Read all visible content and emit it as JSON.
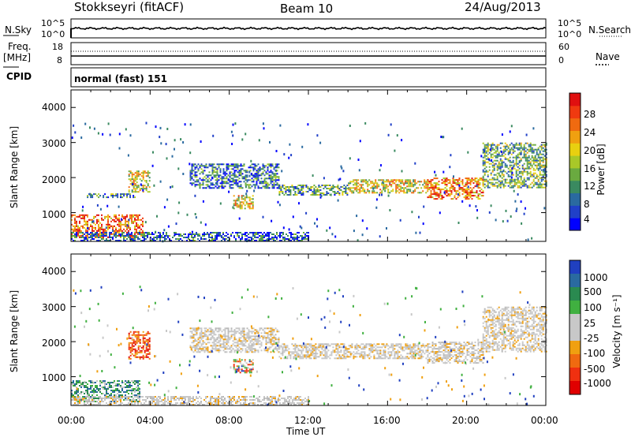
{
  "header": {
    "station": "Stokkseyri (fitACF)",
    "beam": "Beam 10",
    "date": "24/Aug/2013"
  },
  "top_panels": {
    "nsky_label": "N.Sky",
    "nsky_ticks": [
      "10^5",
      "10^0"
    ],
    "nsearch_label": "N.Search",
    "nsearch_ticks": [
      "10^5",
      "10^0"
    ],
    "freq_label": "Freq.",
    "freq_unit": "[MHz]",
    "freq_ticks": [
      "18",
      "8"
    ],
    "nave_label": "Nave",
    "nave_ticks": [
      "60",
      "0"
    ],
    "cpid_label": "CPID",
    "cpid_value": "normal (fast) 151"
  },
  "chart_data": [
    {
      "type": "heatmap",
      "name": "power",
      "ylabel": "Slant Range [km]",
      "y_ticks": [
        "4000",
        "3000",
        "2000",
        "1000"
      ],
      "y_tick_values": [
        4000,
        3000,
        2000,
        1000
      ],
      "ylim": [
        180,
        4500
      ],
      "xlim_hours": [
        0,
        24
      ],
      "colorbar_label": "Power [dB]",
      "colorbar_ticks": [
        "28",
        "24",
        "20",
        "16",
        "12",
        "8",
        "4"
      ],
      "colorbar_colors": [
        "#0000ff",
        "#2040c8",
        "#2a6aa0",
        "#3a8a60",
        "#6aaa40",
        "#a8c828",
        "#e8d010",
        "#f0a010",
        "#f06a10",
        "#f03a10",
        "#e01010"
      ],
      "regions": [
        {
          "t0": 0.0,
          "t1": 3.6,
          "r0": 300,
          "r1": 950,
          "level": 0.8
        },
        {
          "t0": 2.9,
          "t1": 4.0,
          "r0": 1600,
          "r1": 2200,
          "level": 0.55
        },
        {
          "t0": 0.8,
          "t1": 3.3,
          "r0": 1450,
          "r1": 1550,
          "level": 0.3
        },
        {
          "t0": 6.0,
          "t1": 10.5,
          "r0": 1700,
          "r1": 2400,
          "level": 0.25
        },
        {
          "t0": 8.2,
          "t1": 9.2,
          "r0": 1100,
          "r1": 1500,
          "level": 0.6
        },
        {
          "t0": 10.5,
          "t1": 14.0,
          "r0": 1500,
          "r1": 1800,
          "level": 0.35
        },
        {
          "t0": 14.0,
          "t1": 18.0,
          "r0": 1550,
          "r1": 1950,
          "level": 0.55
        },
        {
          "t0": 18.0,
          "t1": 20.8,
          "r0": 1400,
          "r1": 2000,
          "level": 0.75
        },
        {
          "t0": 20.8,
          "t1": 24.0,
          "r0": 1700,
          "r1": 3000,
          "level": 0.4
        },
        {
          "t0": 0.0,
          "t1": 12.0,
          "r0": 200,
          "r1": 450,
          "level": 0.2
        }
      ]
    },
    {
      "type": "heatmap",
      "name": "velocity",
      "ylabel": "Slant Range [km]",
      "y_ticks": [
        "4000",
        "3000",
        "2000",
        "1000"
      ],
      "y_tick_values": [
        4000,
        3000,
        2000,
        1000
      ],
      "ylim": [
        180,
        4500
      ],
      "xlim_hours": [
        0,
        24
      ],
      "xlabel": "Time UT",
      "x_ticks": [
        "00:00",
        "04:00",
        "08:00",
        "12:00",
        "16:00",
        "20:00",
        "00:00"
      ],
      "x_tick_values": [
        0,
        4,
        8,
        12,
        16,
        20,
        24
      ],
      "colorbar_label": "Velocity [m s⁻¹]",
      "colorbar_ticks": [
        "1000",
        "500",
        "100",
        "25",
        "-25",
        "-100",
        "-500",
        "-1000"
      ],
      "colorbar_colors": [
        "#2040c0",
        "#2a6aa0",
        "#2a8a50",
        "#40b040",
        "#c8c8c8",
        "#c8c8c8",
        "#f0a010",
        "#f06a10",
        "#f03010",
        "#e00000"
      ],
      "regions": [
        {
          "t0": 0.0,
          "t1": 3.5,
          "r0": 300,
          "r1": 900,
          "level": "green"
        },
        {
          "t0": 2.9,
          "t1": 4.0,
          "r0": 1500,
          "r1": 2300,
          "level": "red"
        },
        {
          "t0": 6.0,
          "t1": 10.5,
          "r0": 1700,
          "r1": 2400,
          "level": "grey"
        },
        {
          "t0": 8.2,
          "t1": 9.2,
          "r0": 1100,
          "r1": 1500,
          "level": "mixed"
        },
        {
          "t0": 10.5,
          "t1": 18.0,
          "r0": 1500,
          "r1": 1950,
          "level": "grey"
        },
        {
          "t0": 18.0,
          "t1": 20.8,
          "r0": 1400,
          "r1": 2000,
          "level": "grey"
        },
        {
          "t0": 20.8,
          "t1": 24.0,
          "r0": 1700,
          "r1": 3000,
          "level": "grey"
        },
        {
          "t0": 0.0,
          "t1": 12.0,
          "r0": 200,
          "r1": 450,
          "level": "grey"
        }
      ]
    }
  ]
}
